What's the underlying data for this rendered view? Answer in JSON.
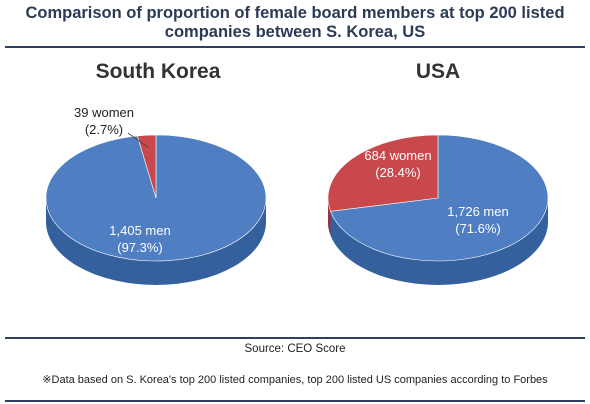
{
  "title_line1": "Comparison of proportion of female board members at top 200 listed",
  "title_line2": "companies between S. Korea, US",
  "source": "Source: CEO Score",
  "note": "※Data based on S. Korea's top 200 listed companies, top 200 listed US companies according to Forbes",
  "colors": {
    "men": "#4f7ec3",
    "women": "#c9484b",
    "men_side": "#35609e",
    "women_side": "#9e3034"
  },
  "chart_data": [
    {
      "type": "pie",
      "title": "South Korea",
      "slices": [
        {
          "label": "1,405 men",
          "pct_label": "(97.3%)",
          "value": 1405,
          "percent": 97.3
        },
        {
          "label": "39 women",
          "pct_label": "(2.7%)",
          "value": 39,
          "percent": 2.7
        }
      ]
    },
    {
      "type": "pie",
      "title": "USA",
      "slices": [
        {
          "label": "1,726 men",
          "pct_label": "(71.6%)",
          "value": 1726,
          "percent": 71.6
        },
        {
          "label": "684 women",
          "pct_label": "(28.4%)",
          "value": 684,
          "percent": 28.4
        }
      ]
    }
  ]
}
